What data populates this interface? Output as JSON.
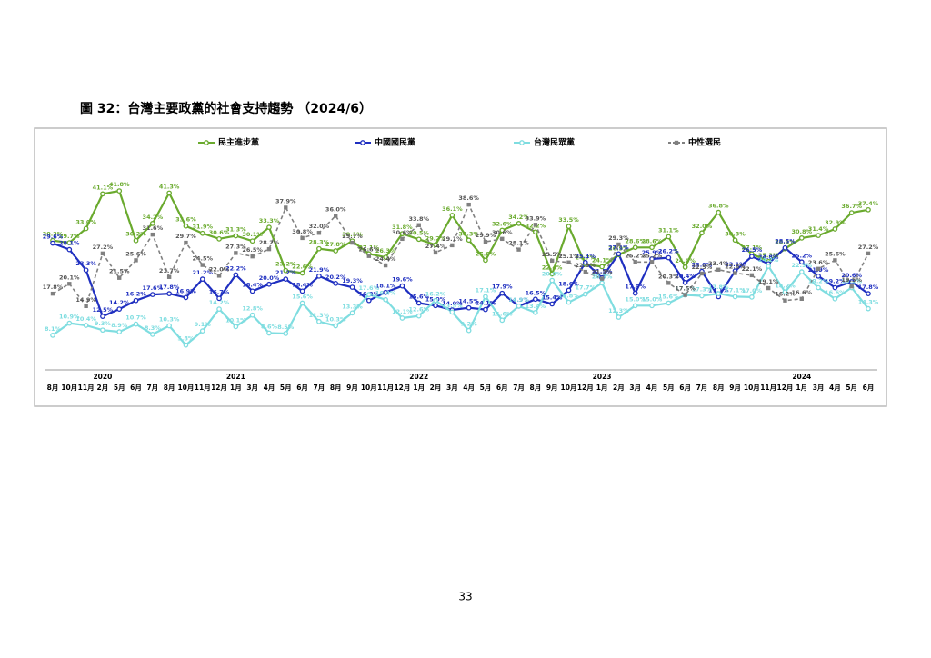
{
  "title": "圖 32：台灣主要政黨的社會支持趨勢 （2024/6）",
  "page_number": "33",
  "chart_data": {
    "type": "line",
    "categories": [
      "8月",
      "10月",
      "11月",
      "2月",
      "5月",
      "6月",
      "7月",
      "8月",
      "10月",
      "11月",
      "12月",
      "1月",
      "3月",
      "4月",
      "5月",
      "6月",
      "7月",
      "8月",
      "9月",
      "10月",
      "11月",
      "12月",
      "1月",
      "2月",
      "3月",
      "4月",
      "5月",
      "6月",
      "7月",
      "8月",
      "9月",
      "10月",
      "12月",
      "1月",
      "2月",
      "3月",
      "4月",
      "5月",
      "6月",
      "7月",
      "8月",
      "9月",
      "10月",
      "11月",
      "12月",
      "1月",
      "3月",
      "4月",
      "5月",
      "6月"
    ],
    "year_labels": [
      null,
      null,
      null,
      "2020",
      null,
      null,
      null,
      null,
      null,
      null,
      null,
      "2021",
      null,
      null,
      null,
      null,
      null,
      null,
      null,
      null,
      null,
      null,
      "2022",
      null,
      null,
      null,
      null,
      null,
      null,
      null,
      null,
      null,
      null,
      "2023",
      null,
      null,
      null,
      null,
      null,
      null,
      null,
      null,
      null,
      null,
      null,
      "2024",
      null,
      null,
      null,
      null
    ],
    "ylim": [
      0,
      45
    ],
    "series": [
      {
        "name": "民主進步黨",
        "color": "#6aaa2e",
        "marker": "circle",
        "dashed": false,
        "values": [
          30.2,
          29.7,
          33.0,
          41.1,
          41.8,
          30.2,
          34.2,
          41.3,
          33.6,
          31.9,
          30.6,
          31.3,
          30.1,
          33.3,
          23.2,
          22.6,
          28.3,
          27.8,
          30.1,
          27.1,
          26.3,
          31.8,
          30.5,
          29.2,
          36.1,
          30.3,
          25.6,
          32.6,
          34.2,
          32.2,
          22.4,
          33.5,
          24.7,
          24.1,
          26.9,
          28.6,
          28.6,
          31.1,
          24.0,
          32.0,
          36.8,
          30.3,
          27.1,
          25.3,
          28.3,
          30.8,
          31.4,
          32.9,
          36.7,
          37.4
        ],
        "value_labels": [
          "30.2%",
          "29.7%",
          "33.0%",
          "41.1%",
          "41.8%",
          "30.2%",
          "34.2%",
          "41.3%",
          "33.6%",
          "31.9%",
          "30.6%",
          "31.3%",
          "30.1%",
          "33.3%",
          "23.2%",
          "22.6%",
          "28.3%",
          "27.8%",
          "30.1%",
          "27.1%",
          "26.3%",
          "31.8%",
          "30.5%",
          "29.2%",
          "36.1%",
          "30.3%",
          "25.6%",
          "32.6%",
          "34.2%",
          "32.2%",
          "22.4%",
          "33.5%",
          "24.7%",
          "24.1%",
          "26.9%",
          "28.6%",
          "28.6%",
          "31.1%",
          "24.0%",
          "32.0%",
          "36.8%",
          "30.3%",
          "27.1%",
          "25.3%",
          "28.3%",
          "30.8%",
          "31.4%",
          "32.9%",
          "36.7%",
          "37.4%"
        ]
      },
      {
        "name": "中國國民黨",
        "color": "#1f2fc0",
        "marker": "circle",
        "dashed": false,
        "values": [
          29.6,
          28.1,
          23.3,
          12.5,
          14.2,
          16.2,
          17.6,
          17.8,
          16.9,
          21.2,
          16.7,
          22.2,
          18.4,
          20.0,
          21.2,
          18.4,
          21.9,
          20.2,
          19.3,
          16.2,
          18.1,
          19.6,
          15.6,
          15.0,
          14.0,
          14.5,
          14.1,
          17.9,
          14.9,
          16.5,
          15.4,
          18.6,
          25.1,
          21.5,
          27.1,
          17.9,
          25.9,
          26.2,
          20.4,
          23.0,
          17.1,
          23.1,
          26.5,
          24.8,
          28.5,
          25.2,
          21.9,
          19.2,
          20.6,
          17.8
        ],
        "value_labels": [
          "29.6%",
          "28.1%",
          "23.3%",
          "12.5%",
          "14.2%",
          "16.2%",
          "17.6%",
          "17.8%",
          "16.9%",
          "21.2%",
          "16.7%",
          "22.2%",
          "18.4%",
          "20.0%",
          "21.2%",
          "18.4%",
          "21.9%",
          "20.2%",
          "19.3%",
          "16.2%",
          "18.1%",
          "19.6%",
          "15.6%",
          "15.0%",
          "14.0%",
          "14.5%",
          "14.1%",
          "17.9%",
          "14.9%",
          "16.5%",
          "15.4%",
          "18.6%",
          "25.1%",
          "21.5%",
          "27.1%",
          "17.9%",
          "25.9%",
          "26.2%",
          "20.4%",
          "23.0%",
          "17.1%",
          "23.1%",
          "26.5%",
          "24.8%",
          "28.5%",
          "25.2%",
          "21.9%",
          "19.2%",
          "20.6%",
          "17.8%"
        ]
      },
      {
        "name": "台灣民眾黨",
        "color": "#7fdde0",
        "marker": "circle",
        "dashed": false,
        "values": [
          8.1,
          10.9,
          10.4,
          9.3,
          8.9,
          10.7,
          8.3,
          10.3,
          5.8,
          9.1,
          14.2,
          10.1,
          12.8,
          8.6,
          8.5,
          15.6,
          11.3,
          10.3,
          13.3,
          17.6,
          16.4,
          12.1,
          12.6,
          16.2,
          13.5,
          9.2,
          17.1,
          11.6,
          14.9,
          13.4,
          20.9,
          15.8,
          17.7,
          20.3,
          12.3,
          15.0,
          15.0,
          15.6,
          17.5,
          17.3,
          17.8,
          17.1,
          17.0,
          24.2,
          18.2,
          22.9,
          19.2,
          16.6,
          19.2,
          14.3
        ],
        "value_labels": [
          "8.1%",
          "10.9%",
          "10.4%",
          "9.3%",
          "8.9%",
          "10.7%",
          "8.3%",
          "10.3%",
          "5.8%",
          "9.1%",
          "14.2%",
          "10.1%",
          "12.8%",
          "8.6%",
          "8.5%",
          "15.6%",
          "11.3%",
          "10.3%",
          "13.3%",
          "17.6%",
          "16.4%",
          "12.1%",
          "12.6%",
          "16.2%",
          "13.5%",
          "9.2%",
          "17.1%",
          "11.6%",
          "14.9%",
          "13.4%",
          "20.9%",
          "15.8%",
          "17.7%",
          "20.3%",
          "12.3%",
          "15.0%",
          "15.0%",
          "15.6%",
          "17.5%",
          "17.3%",
          "17.8%",
          "17.1%",
          "17.0%",
          "24.2%",
          "18.2%",
          "22.9%",
          "19.2%",
          "16.6%",
          "19.2%",
          "14.3%"
        ]
      },
      {
        "name": "中性選民",
        "color": "#808080",
        "marker": "square",
        "dashed": true,
        "values": [
          17.8,
          20.1,
          14.9,
          27.2,
          21.5,
          25.6,
          31.6,
          21.7,
          29.7,
          24.5,
          22.0,
          27.3,
          26.5,
          28.2,
          37.9,
          30.8,
          32.0,
          36.0,
          29.7,
          26.6,
          24.4,
          30.6,
          33.8,
          27.4,
          29.1,
          38.6,
          29.9,
          30.6,
          28.1,
          33.9,
          25.5,
          25.1,
          22.9,
          21.3,
          29.3,
          25.2,
          25.2,
          20.3,
          17.5,
          22.5,
          23.4,
          22.6,
          22.1,
          19.1,
          16.2,
          16.6,
          23.6,
          25.6,
          19.5,
          27.2
        ],
        "value_labels": [
          "17.8%",
          "20.1%",
          "14.9%",
          "27.2%",
          "21.5%",
          "25.6%",
          "31.6%",
          "21.7%",
          "29.7%",
          "24.5%",
          "22.0%",
          "27.3%",
          "26.5%",
          "28.2%",
          "37.9%",
          "30.8%",
          "32.0%",
          "36.0%",
          "29.7%",
          "26.6%",
          "24.4%",
          "30.6%",
          "33.8%",
          "27.4%",
          "29.1%",
          "38.6%",
          "29.9%",
          "30.6%",
          "28.1%",
          "33.9%",
          "25.5%",
          "25.1%",
          "22.9%",
          "21.3%",
          "29.3%",
          "25.2%",
          "25.2%",
          "20.3%",
          "17.5%",
          "22.5%",
          "23.4%",
          "22.6%",
          "22.1%",
          "19.1%",
          "16.2%",
          "16.6%",
          "23.6%",
          "25.6%",
          "19.5%",
          "27.2%"
        ]
      }
    ]
  }
}
